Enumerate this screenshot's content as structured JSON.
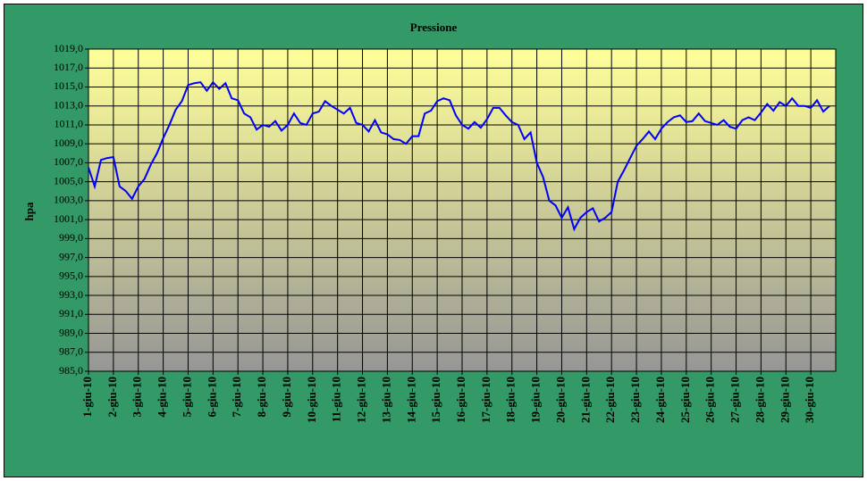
{
  "chart_data": {
    "type": "line",
    "title": "Pressione",
    "y_label": "hpa",
    "categories": [
      "1-giu-10",
      null,
      null,
      null,
      "2-giu-10",
      null,
      null,
      null,
      "3-giu-10",
      null,
      null,
      null,
      "4-giu-10",
      null,
      null,
      null,
      "5-giu-10",
      null,
      null,
      null,
      "6-giu-10",
      null,
      null,
      null,
      "7-giu-10",
      null,
      null,
      null,
      "8-giu-10",
      null,
      null,
      null,
      "9-giu-10",
      null,
      null,
      null,
      "10-giu-10",
      null,
      null,
      null,
      "11-giu-10",
      null,
      null,
      null,
      "12-giu-10",
      null,
      null,
      null,
      "13-giu-10",
      null,
      null,
      null,
      "14-giu-10",
      null,
      null,
      null,
      "15-giu-10",
      null,
      null,
      null,
      "16-giu-10",
      null,
      null,
      null,
      "17-giu-10",
      null,
      null,
      null,
      "18-giu-10",
      null,
      null,
      null,
      "19-giu-10",
      null,
      null,
      null,
      "20-giu-10",
      null,
      null,
      null,
      "21-giu-10",
      null,
      null,
      null,
      "22-giu-10",
      null,
      null,
      null,
      "23-giu-10",
      null,
      null,
      null,
      "24-giu-10",
      null,
      null,
      null,
      "25-giu-10",
      null,
      null,
      null,
      "26-giu-10",
      null,
      null,
      null,
      "27-giu-10",
      null,
      null,
      null,
      "28-giu-10",
      null,
      null,
      null,
      "29-giu-10",
      null,
      null,
      null,
      "30-giu-10",
      null,
      null,
      null
    ],
    "series": [
      {
        "color": "#0000ff",
        "values": [
          1006.5,
          1004.5,
          1007.3,
          1007.5,
          1007.6,
          1004.5,
          1004.0,
          1003.2,
          1004.5,
          1005.3,
          1006.8,
          1008.0,
          1009.6,
          1011.0,
          1012.6,
          1013.5,
          1015.2,
          1015.4,
          1015.5,
          1014.6,
          1015.5,
          1014.8,
          1015.4,
          1013.8,
          1013.6,
          1012.2,
          1011.8,
          1010.5,
          1011.0,
          1010.8,
          1011.4,
          1010.4,
          1011.0,
          1012.2,
          1011.2,
          1011.0,
          1012.2,
          1012.4,
          1013.5,
          1013.0,
          1012.6,
          1012.2,
          1012.8,
          1011.2,
          1011.0,
          1010.3,
          1011.5,
          1010.2,
          1010.0,
          1009.5,
          1009.4,
          1009.0,
          1009.8,
          1009.8,
          1012.2,
          1012.5,
          1013.5,
          1013.8,
          1013.6,
          1012.0,
          1011.0,
          1010.6,
          1011.3,
          1010.7,
          1011.6,
          1012.8,
          1012.8,
          1012.0,
          1011.3,
          1011.0,
          1009.5,
          1010.2,
          1007.0,
          1005.5,
          1003.0,
          1002.5,
          1001.2,
          1002.3,
          1000.0,
          1001.2,
          1001.8,
          1002.2,
          1000.8,
          1001.2,
          1001.8,
          1005.0,
          1006.2,
          1007.5,
          1008.8,
          1009.5,
          1010.3,
          1009.5,
          1010.6,
          1011.3,
          1011.8,
          1012.0,
          1011.3,
          1011.4,
          1012.2,
          1011.4,
          1011.2,
          1011.0,
          1011.5,
          1010.8,
          1010.6,
          1011.5,
          1011.8,
          1011.5,
          1012.3,
          1013.2,
          1012.5,
          1013.4,
          1013.0,
          1013.8,
          1013.0,
          1013.0,
          1012.8,
          1013.6,
          1012.4,
          1013.0
        ]
      }
    ],
    "ylim": [
      985,
      1019
    ],
    "yticks": [
      {
        "value": 985,
        "label": "985,0"
      },
      {
        "value": 987,
        "label": "987,0"
      },
      {
        "value": 989,
        "label": "989,0"
      },
      {
        "value": 991,
        "label": "991,0"
      },
      {
        "value": 993,
        "label": "993,0"
      },
      {
        "value": 995,
        "label": "995,0"
      },
      {
        "value": 997,
        "label": "997,0"
      },
      {
        "value": 999,
        "label": "999,0"
      },
      {
        "value": 1001,
        "label": "1001,0"
      },
      {
        "value": 1003,
        "label": "1003,0"
      },
      {
        "value": 1005,
        "label": "1005,0"
      },
      {
        "value": 1007,
        "label": "1007,0"
      },
      {
        "value": 1009,
        "label": "1009,0"
      },
      {
        "value": 1011,
        "label": "1011,0"
      },
      {
        "value": 1013,
        "label": "1013,0"
      },
      {
        "value": 1015,
        "label": "1015,0"
      },
      {
        "value": 1017,
        "label": "1017,0"
      },
      {
        "value": 1019,
        "label": "1019,0"
      }
    ],
    "grid": true
  }
}
